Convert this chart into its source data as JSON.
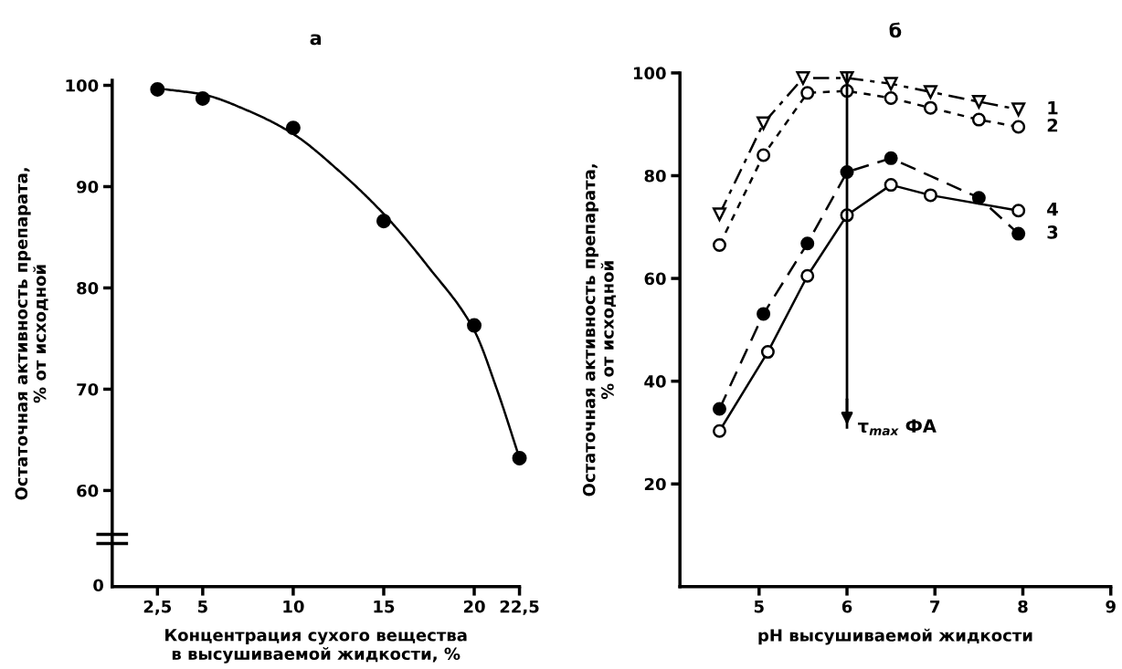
{
  "chart_data": [
    {
      "type": "scatter",
      "title": "а",
      "xlabel": "Концентрация сухого вещества\nв высушиваемой жидкости, %",
      "ylabel": "Остаточная активность препарата,\n% от исходной",
      "xlim": [
        0,
        22.5
      ],
      "xticks": [
        {
          "value": 2.5,
          "label": "2,5"
        },
        5,
        10,
        15,
        20,
        {
          "value": 22.5,
          "label": "22,5"
        }
      ],
      "ylim": [
        50.5,
        100.5
      ],
      "yticks": [
        60,
        70,
        80,
        90,
        100
      ],
      "grid": false,
      "legend": false,
      "annotations": [
        "0"
      ],
      "series": [
        {
          "type": "scatter",
          "color": "#000000",
          "marker": "circle",
          "x": [
            2.5,
            5,
            10,
            15,
            20,
            22.5
          ],
          "values": [
            99.6,
            98.7,
            95.8,
            86.6,
            76.3,
            63.2
          ]
        },
        {
          "type": "line",
          "color": "#000000",
          "marker": "none",
          "line_style": "solid",
          "x": [
            2.5,
            5,
            7.5,
            10,
            12.5,
            15,
            17.5,
            20,
            21.25,
            22.5
          ],
          "values": [
            99.7,
            99.1,
            97.5,
            95.2,
            91.6,
            87.3,
            82.0,
            75.8,
            70.0,
            63.2
          ]
        }
      ]
    },
    {
      "type": "line",
      "title": "б",
      "xlabel": "pH высушиваемой жидкости",
      "ylabel": "Остаточная активность препарата,\n% от исходной",
      "xlim": [
        4.1,
        9
      ],
      "xticks": [
        5,
        6,
        7,
        8,
        9
      ],
      "ylim": [
        0,
        100
      ],
      "yticks": [
        20,
        40,
        60,
        80,
        100
      ],
      "grid": false,
      "legend": false,
      "ref_lines": [
        {
          "axis": "x",
          "value": 6,
          "label": "τ$_{max}$ ФА"
        }
      ],
      "series": [
        {
          "name": "1",
          "color": "#ffffff",
          "marker": "triangle",
          "line_style": "dashdot",
          "x": [
            4.55,
            5.05,
            5.5,
            6.0,
            6.5,
            6.95,
            7.5,
            7.95
          ],
          "values": [
            72.5,
            90.2,
            99.0,
            99.0,
            97.9,
            96.3,
            94.4,
            92.9
          ]
        },
        {
          "name": "2",
          "color": "#ffffff",
          "marker": "circle",
          "line_style": "dotted",
          "x": [
            4.55,
            5.05,
            5.55,
            6.0,
            6.5,
            6.95,
            7.5,
            7.95
          ],
          "values": [
            66.5,
            84.0,
            96.1,
            96.5,
            95.1,
            93.2,
            90.9,
            89.5
          ]
        },
        {
          "name": "3",
          "color": "#000000",
          "marker": "circle",
          "line_style": "dashed",
          "x": [
            4.55,
            5.05,
            5.55,
            6.0,
            6.5,
            7.5,
            7.95
          ],
          "values": [
            34.6,
            53.1,
            66.8,
            80.7,
            83.4,
            75.7,
            68.7
          ]
        },
        {
          "name": "4",
          "color": "#ffffff",
          "marker": "circle",
          "line_style": "solid",
          "x": [
            4.55,
            5.1,
            5.55,
            6.0,
            6.5,
            6.95,
            7.95
          ],
          "values": [
            30.3,
            45.7,
            60.5,
            72.3,
            78.2,
            76.2,
            73.2
          ]
        }
      ]
    }
  ]
}
